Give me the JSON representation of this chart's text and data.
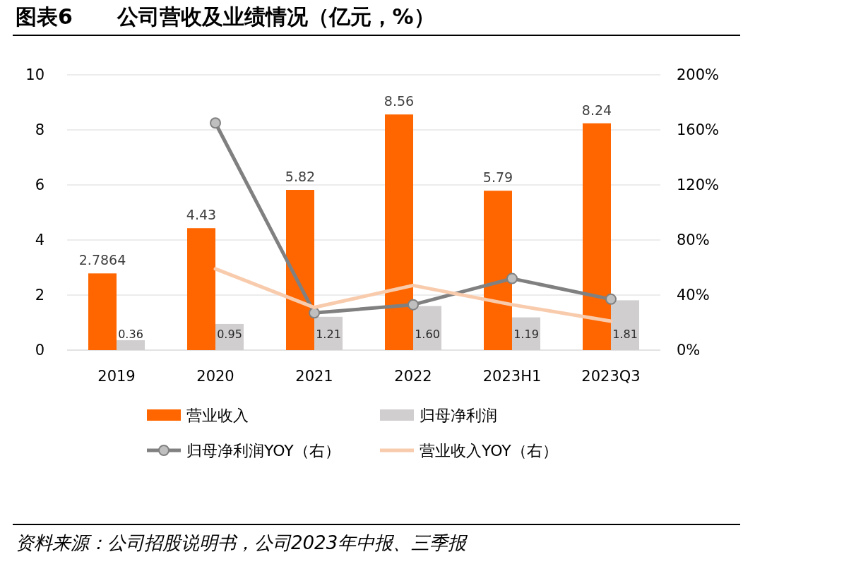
{
  "chart_data": {
    "type": "bar",
    "title": "图表6      公司营收及业绩情况（亿元，%）",
    "categories": [
      "2019",
      "2020",
      "2021",
      "2022",
      "2023H1",
      "2023Q3"
    ],
    "series": [
      {
        "name": "营业收入",
        "type": "bar",
        "color": "#ff6600",
        "values": [
          2.7864,
          4.43,
          5.82,
          8.56,
          5.79,
          8.24
        ],
        "value_labels": [
          "2.7864",
          "4.43",
          "5.82",
          "8.56",
          "5.79",
          "8.24"
        ]
      },
      {
        "name": "归母净利润",
        "type": "bar",
        "color": "#d0cece",
        "values": [
          0.36,
          0.95,
          1.21,
          1.6,
          1.19,
          1.81
        ],
        "value_labels": [
          "0.36",
          "0.95",
          "1.21",
          "1.60",
          "1.19",
          "1.81"
        ]
      },
      {
        "name": "归母净利润YOY（右）",
        "type": "line",
        "axis": "y2",
        "color": "#808080",
        "marker": "circle",
        "values": [
          null,
          165,
          27,
          33,
          52,
          37
        ]
      },
      {
        "name": "营业收入YOY（右）",
        "type": "line",
        "axis": "y2",
        "color": "#f8cbad",
        "marker": "none",
        "values": [
          null,
          59,
          31,
          47,
          33,
          21
        ]
      }
    ],
    "ylim": [
      0,
      10
    ],
    "yticks": [
      0,
      2,
      4,
      6,
      8,
      10
    ],
    "y2lim": [
      0,
      200
    ],
    "y2ticks": [
      {
        "value": 0,
        "label": "0%"
      },
      {
        "value": 40,
        "label": "40%"
      },
      {
        "value": 80,
        "label": "80%"
      },
      {
        "value": 120,
        "label": "120%"
      },
      {
        "value": 160,
        "label": "160%"
      },
      {
        "value": 200,
        "label": "200%"
      }
    ],
    "grid": "y",
    "legend": "bottom",
    "line_style": "solid",
    "annotations": [
      "资料来源：公司招股说明书，公司2023年中报、三季报"
    ]
  }
}
